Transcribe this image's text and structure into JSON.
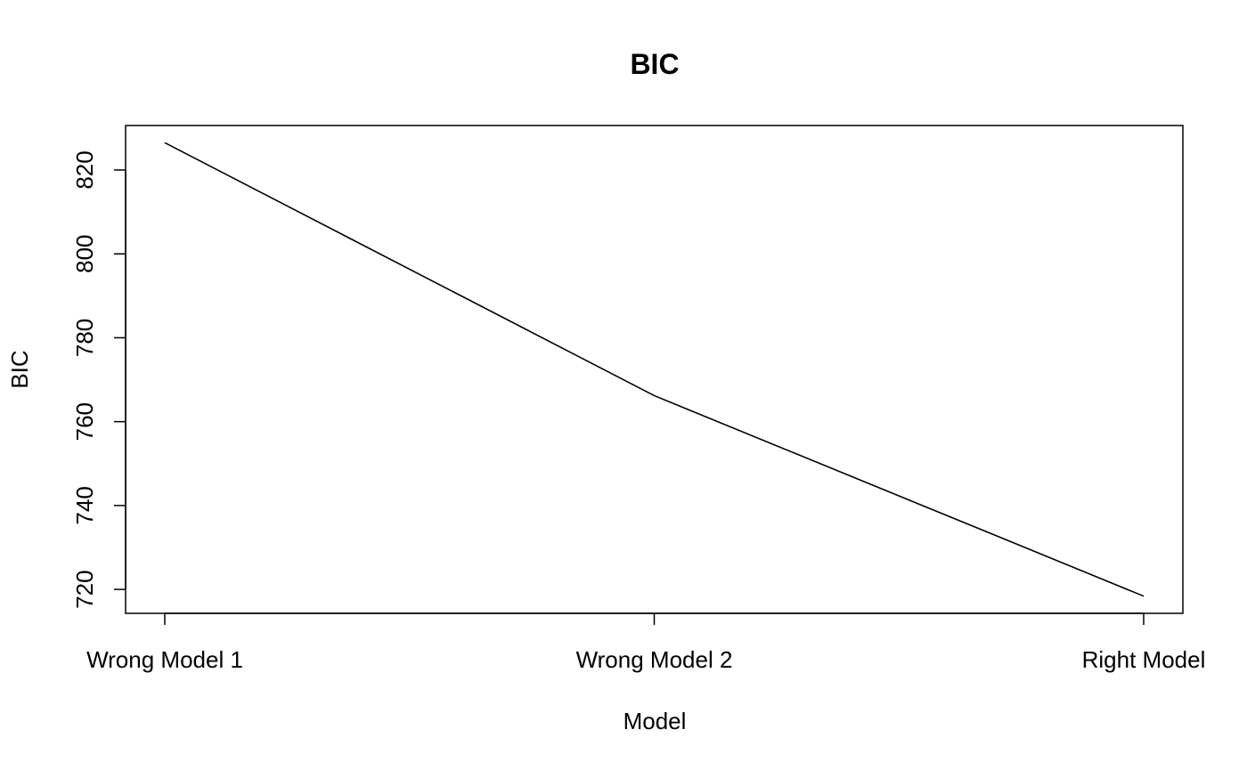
{
  "chart_data": {
    "type": "line",
    "title": "BIC",
    "xlabel": "Model",
    "ylabel": "BIC",
    "categories": [
      "Wrong Model 1",
      "Wrong Model 2",
      "Right Model"
    ],
    "series": [
      {
        "values": [
          826.5,
          766.2,
          718.4
        ]
      }
    ],
    "ylim": [
      714.3,
      830.6
    ],
    "yticks": [
      720,
      740,
      760,
      780,
      800,
      820
    ],
    "grid": false,
    "line_color": "#000000"
  }
}
